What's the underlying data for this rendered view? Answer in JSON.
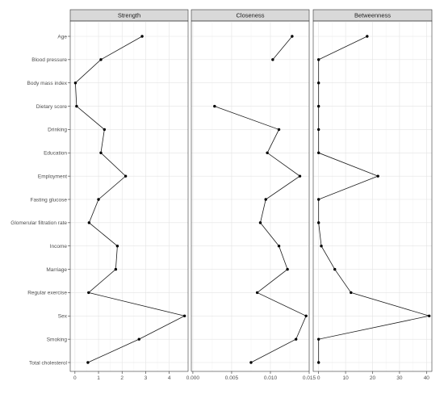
{
  "chart_data": {
    "type": "line",
    "categories": [
      "Age",
      "Blood pressure",
      "Body mass index",
      "Dietary score",
      "Drinking",
      "Education",
      "Employment",
      "Fasting glucose",
      "Glomerular filtration rate",
      "Income",
      "Marriage",
      "Regular exercise",
      "Sex",
      "Smoking",
      "Total cholesterol"
    ],
    "facets": [
      {
        "name": "Strength",
        "xlim": [
          -0.2,
          4.8
        ],
        "ticks": [
          0,
          1,
          2,
          3,
          4
        ],
        "tick_labels": [
          "0",
          "1",
          "2",
          "3",
          "4"
        ],
        "values": [
          2.85,
          1.1,
          0.02,
          0.07,
          1.25,
          1.1,
          2.15,
          1.0,
          0.6,
          1.8,
          1.73,
          0.58,
          4.65,
          2.72,
          0.55
        ]
      },
      {
        "name": "Closeness",
        "xlim": [
          -0.0002,
          0.015
        ],
        "ticks": [
          0.0,
          0.005,
          0.01,
          0.015
        ],
        "tick_labels": [
          "0.000",
          "0.005",
          "0.010",
          "0.015"
        ],
        "values": [
          0.0128,
          0.0103,
          null,
          0.0028,
          0.0111,
          0.0096,
          0.0138,
          0.0094,
          0.0087,
          0.0111,
          0.0122,
          0.0083,
          0.0146,
          0.0133,
          0.0075
        ]
      },
      {
        "name": "Betweenness",
        "xlim": [
          -2,
          42
        ],
        "ticks": [
          0,
          10,
          20,
          30,
          40
        ],
        "tick_labels": [
          "0",
          "10",
          "20",
          "30",
          "40"
        ],
        "values": [
          18,
          0,
          0,
          0,
          0,
          0,
          22,
          0,
          0,
          1,
          6,
          12,
          41,
          0,
          0
        ]
      }
    ],
    "grid": true,
    "legend": "none"
  }
}
